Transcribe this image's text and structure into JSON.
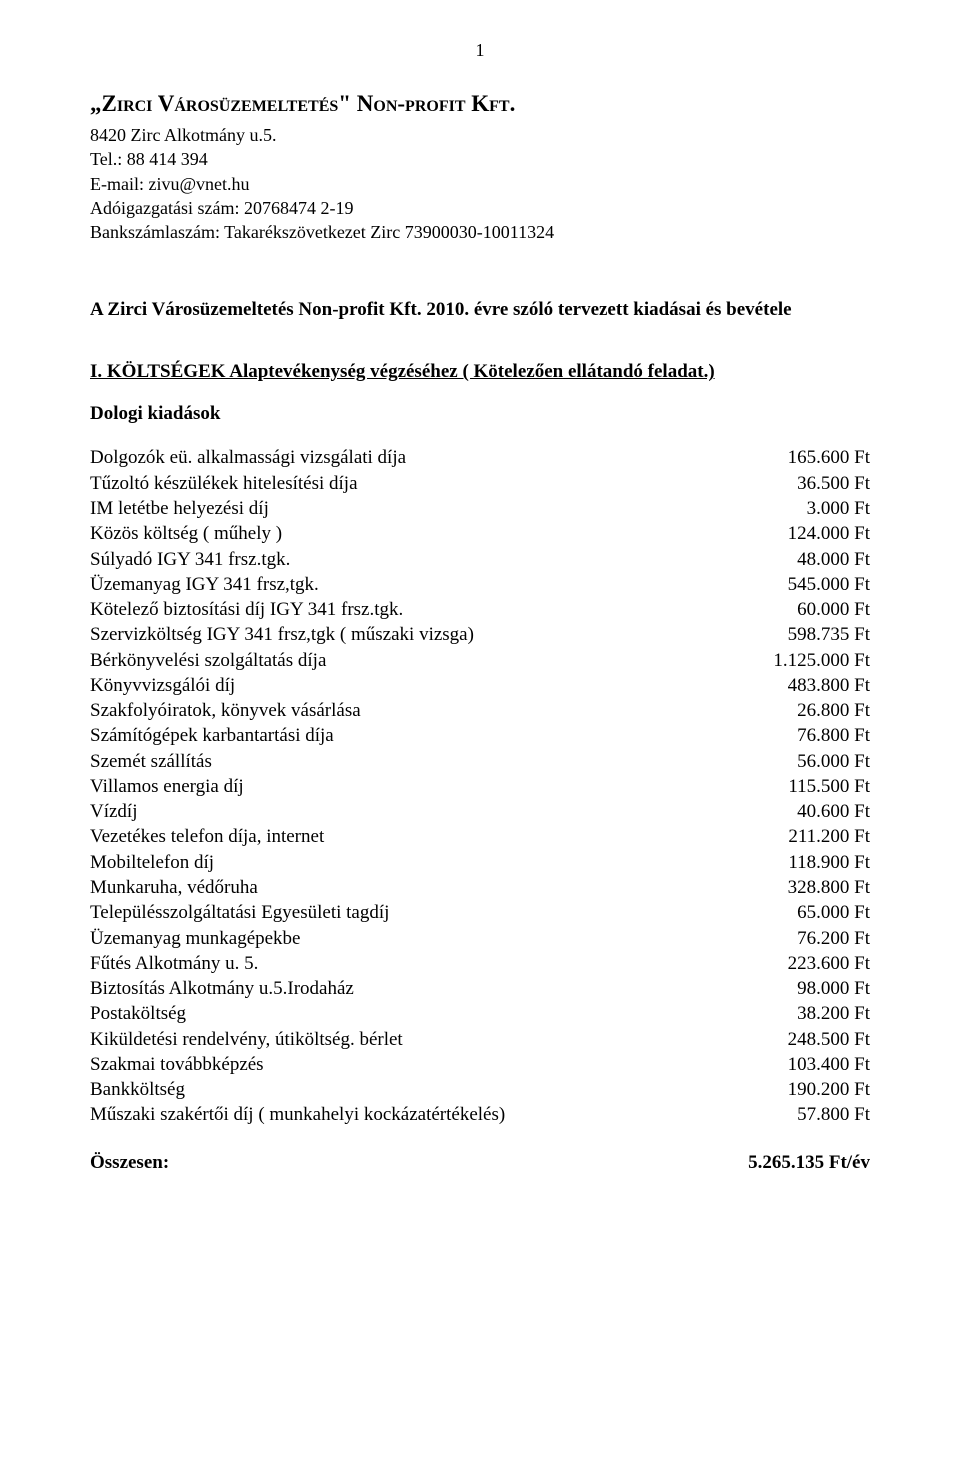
{
  "page_number": "1",
  "header": {
    "company_quoted": "„Zirci Városüzemeltetés\" Non-profit Kft.",
    "address": "8420 Zirc Alkotmány u.5.",
    "tel": "Tel.: 88 414 394",
    "email": "E-mail: zivu@vnet.hu",
    "taxno": "Adóigazgatási szám: 20768474 2-19",
    "bank": "Bankszámlaszám: Takarékszövetkezet Zirc 73900030-10011324"
  },
  "main_heading": "A Zirci Városüzemeltetés Non-profit Kft. 2010. évre szóló tervezett kiadásai és bevétele",
  "section_heading": "I.    KÖLTSÉGEK Alaptevékenység végzéséhez ( Kötelezően ellátandó feladat.)",
  "sub_heading": "Dologi kiadások",
  "items": [
    {
      "label": "Dolgozók eü. alkalmassági vizsgálati díja",
      "value": "165.600 Ft"
    },
    {
      "label": "Tűzoltó készülékek hitelesítési díja",
      "value": "36.500 Ft"
    },
    {
      "label": "IM letétbe helyezési díj",
      "value": "3.000 Ft"
    },
    {
      "label": "Közös költség ( műhely )",
      "value": "124.000 Ft"
    },
    {
      "label": "Súlyadó IGY 341 frsz.tgk.",
      "value": "48.000 Ft"
    },
    {
      "label": "Üzemanyag  IGY 341 frsz,tgk.",
      "value": "545.000 Ft"
    },
    {
      "label": "Kötelező biztosítási díj IGY 341 frsz.tgk.",
      "value": "60.000 Ft"
    },
    {
      "label": "Szervizköltség  IGY 341 frsz,tgk ( műszaki vizsga)",
      "value": "598.735 Ft"
    },
    {
      "label": "Bérkönyvelési szolgáltatás díja",
      "value": "1.125.000 Ft"
    },
    {
      "label": "Könyvvizsgálói díj",
      "value": "483.800 Ft"
    },
    {
      "label": "Szakfolyóiratok, könyvek vásárlása",
      "value": "26.800 Ft"
    },
    {
      "label": "Számítógépek karbantartási díja",
      "value": "76.800 Ft"
    },
    {
      "label": "Szemét szállítás",
      "value": "56.000 Ft"
    },
    {
      "label": "Villamos energia díj",
      "value": "115.500 Ft"
    },
    {
      "label": "Vízdíj",
      "value": "40.600 Ft"
    },
    {
      "label": "Vezetékes telefon díja, internet",
      "value": "211.200 Ft"
    },
    {
      "label": "Mobiltelefon díj",
      "value": "118.900 Ft"
    },
    {
      "label": "Munkaruha, védőruha",
      "value": "328.800 Ft"
    },
    {
      "label": "Településszolgáltatási Egyesületi tagdíj",
      "value": "65.000 Ft"
    },
    {
      "label": "Üzemanyag munkagépekbe",
      "value": "76.200 Ft"
    },
    {
      "label": "Fűtés Alkotmány u. 5.",
      "value": "223.600 Ft"
    },
    {
      "label": "Biztosítás Alkotmány u.5.Irodaház",
      "value": "98.000 Ft"
    },
    {
      "label": "Postaköltség",
      "value": "38.200 Ft"
    },
    {
      "label": "Kiküldetési rendelvény, útiköltség. bérlet",
      "value": "248.500 Ft"
    },
    {
      "label": "Szakmai továbbképzés",
      "value": "103.400 Ft"
    },
    {
      "label": "Bankköltség",
      "value": "190.200 Ft"
    },
    {
      "label": "Műszaki szakértői díj ( munkahelyi kockázatértékelés)",
      "value": "57.800 Ft"
    }
  ],
  "total": {
    "label": "Összesen:",
    "value": "5.265.135 Ft/év"
  }
}
